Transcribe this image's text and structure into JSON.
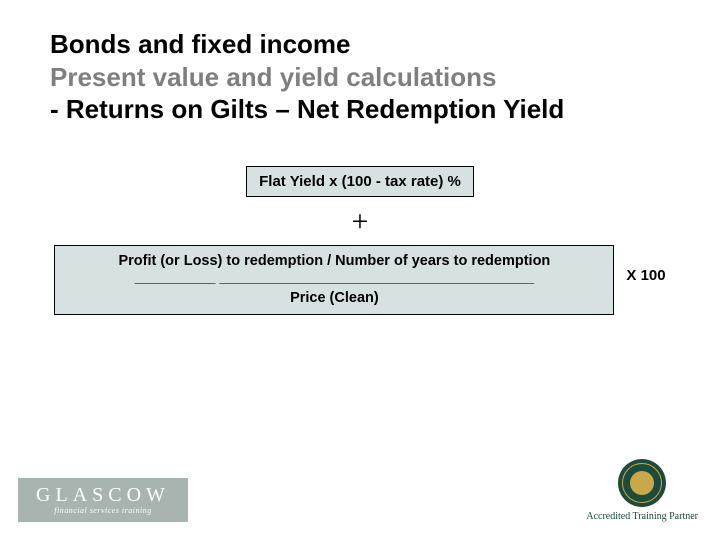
{
  "title": {
    "line1": "Bonds and fixed income",
    "line2": "Present value and yield calculations",
    "line3": "- Returns on Gilts – Net Redemption Yield"
  },
  "formula": {
    "box1": "Flat Yield x (100 - tax rate) %",
    "plus": "+",
    "numerator": "Profit (or Loss) to redemption / Number of years to redemption",
    "divider": "__________ _______________________________________",
    "denominator": "Price (Clean)",
    "multiplier": "X 100"
  },
  "footer": {
    "logo_main": "GLASCOW",
    "logo_sub": "financial services training",
    "accredited": "Accredited Training Partner"
  },
  "colors": {
    "title_gray": "#7f7f7f",
    "box_bg": "#d6e2e2",
    "seal_bg": "#1d4a3a",
    "seal_gold": "#c9a84a",
    "glascow_bg": "#a7b4b0"
  }
}
